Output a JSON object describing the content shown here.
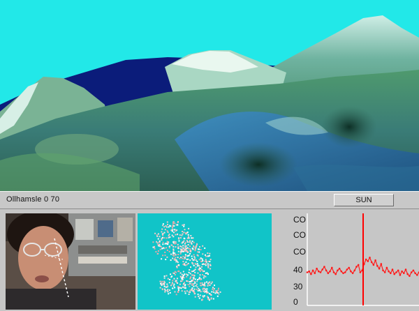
{
  "status_bar": {
    "label": "Ollhamsle 0 70",
    "run_button": "SUN"
  },
  "panels": {
    "terrain_view": "mountain-terrain-3d",
    "camera_feed": "face-video",
    "tracking_view": "face-silhouette-map"
  },
  "plot": {
    "y_tick_labels": [
      "CO",
      "CO",
      "CO",
      "40",
      "30",
      "0"
    ]
  },
  "colors": {
    "sky": "#22e8e8",
    "water": "#0a1a7a",
    "panel_bg": "#c6c6c6",
    "marker_line": "#ff0000",
    "signal": "#ff1a1a",
    "silhouette_bg": "#11c4c8"
  },
  "chart_data": {
    "type": "line",
    "title": "",
    "xlabel": "",
    "ylabel": "",
    "y_tick_labels": [
      "CO",
      "CO",
      "CO",
      "40",
      "30",
      "0"
    ],
    "marker_x": 0.5,
    "series": [
      {
        "values": [
          36,
          37,
          34,
          38,
          35,
          40,
          37,
          36,
          39,
          42,
          38,
          35,
          37,
          41,
          36,
          34,
          38,
          40,
          37,
          35,
          36,
          39,
          41,
          37,
          35,
          38,
          42,
          44,
          36,
          38,
          45,
          50,
          48,
          52,
          47,
          44,
          49,
          43,
          40,
          45,
          38,
          36,
          41,
          37,
          35,
          39,
          34,
          36,
          38,
          33,
          37,
          35,
          39,
          34,
          32,
          36,
          38,
          35,
          33,
          36
        ]
      }
    ]
  }
}
